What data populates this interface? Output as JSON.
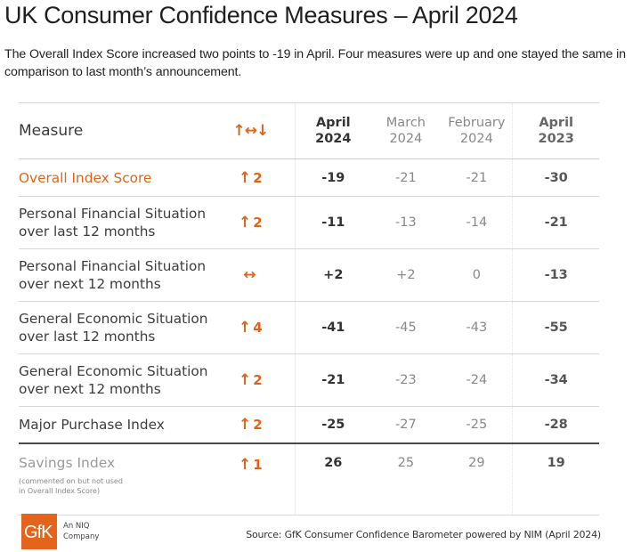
{
  "header": {
    "title": "UK Consumer Confidence Measures – April 2024",
    "subtitle": "The Overall Index Score increased two points to -19 in April. Four measures were up and one stayed the same in comparison to last month’s announcement."
  },
  "table": {
    "columns": {
      "measure": "Measure",
      "change_icon": "↑↔↓",
      "apr2024": [
        "April",
        "2024"
      ],
      "mar2024": [
        "March",
        "2024"
      ],
      "feb2024": [
        "February",
        "2024"
      ],
      "apr2023": [
        "April",
        "2023"
      ]
    },
    "rows": [
      {
        "measure": [
          "Overall Index Score"
        ],
        "change_icon": "up-arrow-icon",
        "arrow": "↑",
        "change": "2",
        "apr2024": "-19",
        "mar2024": "-21",
        "feb2024": "-21",
        "apr2023": "-30"
      },
      {
        "measure": [
          "Personal Financial Situation",
          "over last 12 months"
        ],
        "change_icon": "up-arrow-icon",
        "arrow": "↑",
        "change": "2",
        "apr2024": "-11",
        "mar2024": "-13",
        "feb2024": "-14",
        "apr2023": "-21"
      },
      {
        "measure": [
          "Personal Financial Situation",
          "over next 12 months"
        ],
        "change_icon": "left-right-arrow-icon",
        "arrow": "↔",
        "change": "",
        "apr2024": "+2",
        "mar2024": "+2",
        "feb2024": "0",
        "apr2023": "-13"
      },
      {
        "measure": [
          "General Economic Situation",
          "over last 12 months"
        ],
        "change_icon": "up-arrow-icon",
        "arrow": "↑",
        "change": "4",
        "apr2024": "-41",
        "mar2024": "-45",
        "feb2024": "-43",
        "apr2023": "-55"
      },
      {
        "measure": [
          "General Economic Situation",
          "over next 12 months"
        ],
        "change_icon": "up-arrow-icon",
        "arrow": "↑",
        "change": "2",
        "apr2024": "-21",
        "mar2024": "-23",
        "feb2024": "-24",
        "apr2023": "-34"
      },
      {
        "measure": [
          "Major Purchase Index"
        ],
        "change_icon": "up-arrow-icon",
        "arrow": "↑",
        "change": "2",
        "apr2024": "-25",
        "mar2024": "-27",
        "feb2024": "-25",
        "apr2023": "-28"
      }
    ],
    "savings": {
      "measure": "Savings Index",
      "note": [
        "(commented on but not used",
        "in Overall Index Score)"
      ],
      "arrow": "↑",
      "change": "1",
      "apr2024": "26",
      "mar2024": "25",
      "feb2024": "29",
      "apr2023": "19"
    }
  },
  "footer": {
    "logo_text": "GfK",
    "logo_tagline": [
      "An NIQ",
      "Company"
    ],
    "source": "Source: GfK Consumer Confidence Barometer powered by NIM (April 2024)"
  },
  "colors": {
    "accent": "#e06418",
    "logo_bg": "#e5641c"
  }
}
